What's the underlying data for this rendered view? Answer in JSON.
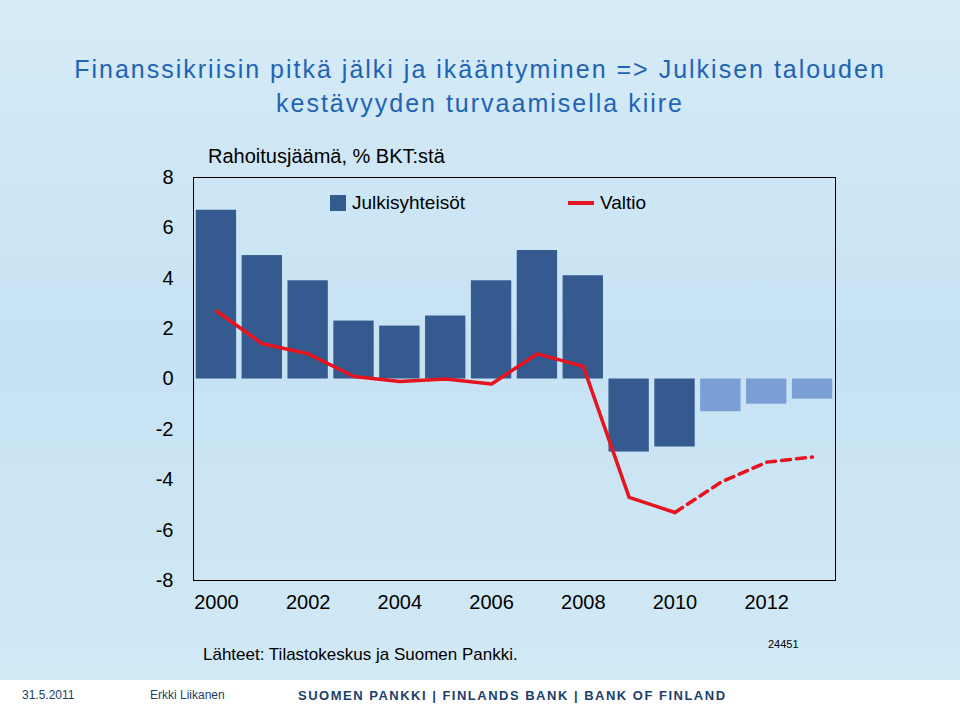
{
  "chart_data": {
    "type": "bar",
    "title": "Finanssikriisin pitkä jälki ja ikääntyminen => Julkisen talouden kestävyyden turvaamisella kiire",
    "y_label": "Rahoitusjäämä, % BKT:stä",
    "source": "Lähteet: Tilastokeskus ja Suomen Pankki.",
    "annotations": [
      "24451"
    ],
    "categories": [
      "2000",
      null,
      "2002",
      null,
      "2004",
      null,
      "2006",
      null,
      "2008",
      null,
      "2010",
      null,
      "2012",
      null
    ],
    "series": [
      {
        "name": "Julkisyhteisöt",
        "type": "bar",
        "colors": [
          "#355a8f",
          "#355a8f",
          "#355a8f",
          "#355a8f",
          "#355a8f",
          "#355a8f",
          "#355a8f",
          "#355a8f",
          "#355a8f",
          "#355a8f",
          "#355a8f",
          "#7a9fd4",
          "#7a9fd4",
          "#7a9fd4"
        ],
        "values": [
          6.7,
          4.9,
          3.9,
          2.3,
          2.1,
          2.5,
          3.9,
          5.1,
          4.1,
          -2.9,
          -2.7,
          -1.3,
          -1.0,
          -0.8
        ]
      },
      {
        "name": "Valtio",
        "type": "line",
        "color": "#e5141f",
        "line_style": "solid",
        "values": [
          2.7,
          1.4,
          1.0,
          0.1,
          -0.1,
          0.0,
          -0.2,
          1.0,
          0.5,
          -4.7,
          -5.3,
          null,
          null,
          null
        ]
      },
      {
        "name": "Valtio",
        "type": "line",
        "color": "#e5141f",
        "line_style": "dashed",
        "values": [
          null,
          null,
          null,
          null,
          null,
          null,
          null,
          null,
          null,
          null,
          -5.3,
          -4.1,
          -3.3,
          -3.1
        ]
      }
    ],
    "ylim": [
      -8,
      8
    ],
    "yticks": [
      -8,
      -6,
      -4,
      -2,
      0,
      2,
      4,
      6,
      8
    ],
    "grid": false,
    "legend": "top"
  },
  "footer": {
    "date": "31.5.2011",
    "author": "Erkki Liikanen",
    "organization": "SUOMEN PANKKI | FINLANDS BANK | BANK OF FINLAND"
  }
}
